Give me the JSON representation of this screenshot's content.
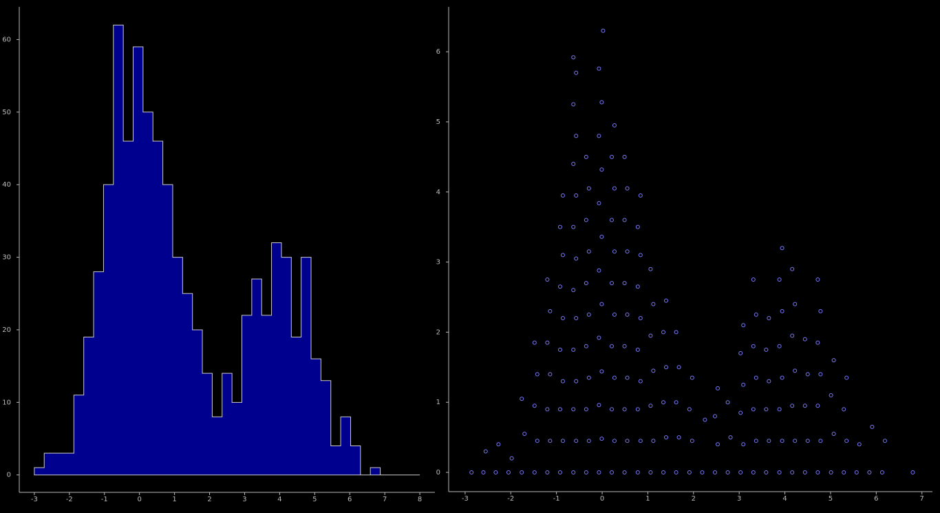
{
  "chart_data": [
    {
      "type": "histogram",
      "bins": [
        -3,
        -2.718,
        -2.436,
        -2.154,
        -1.872,
        -1.59,
        -1.308,
        -1.026,
        -0.744,
        -0.462,
        -0.18,
        0.102,
        0.384,
        0.666,
        0.948,
        1.23,
        1.512,
        1.794,
        2.076,
        2.358,
        2.64,
        2.922,
        3.204,
        3.486,
        3.768,
        4.05,
        4.332,
        4.614,
        4.896,
        5.178,
        5.46,
        5.742,
        6.024,
        6.306,
        6.588,
        6.87,
        7.152,
        7.434,
        7.716,
        7.998
      ],
      "values": [
        1,
        3,
        3,
        3,
        11,
        19,
        28,
        40,
        62,
        46,
        59,
        50,
        46,
        40,
        30,
        25,
        20,
        14,
        8,
        14,
        10,
        22,
        27,
        22,
        32,
        30,
        19,
        30,
        16,
        13,
        4,
        8,
        4,
        0,
        1,
        0,
        0,
        0,
        0
      ],
      "color": "#00008f",
      "edgecolor": "#cccccc",
      "xlim": [
        -3.43,
        8.43
      ],
      "xticks": [
        -3,
        -2,
        -1,
        0,
        1,
        2,
        3,
        4,
        5,
        6,
        7,
        8
      ],
      "ylim": [
        -2.4,
        64.5
      ],
      "yticks": [
        0,
        10,
        20,
        30,
        40,
        50,
        60
      ]
    },
    {
      "type": "scatter",
      "x": [
        -2.86,
        -2.6,
        -2.55,
        -2.33,
        -2.27,
        -2.05,
        -1.98,
        -1.76,
        -1.7,
        -1.76,
        -1.48,
        -1.42,
        -1.48,
        -1.42,
        -1.48,
        -1.2,
        -1.14,
        -1.2,
        -1.14,
        -1.2,
        -1.14,
        -1.2,
        -0.92,
        -0.86,
        -0.92,
        -0.86,
        -0.92,
        -0.86,
        -0.92,
        -0.86,
        -0.92,
        -0.86,
        -0.63,
        -0.57,
        -0.63,
        -0.57,
        -0.63,
        -0.57,
        -0.63,
        -0.57,
        -0.63,
        -0.57,
        -0.63,
        -0.57,
        -0.63,
        -0.57,
        -0.63,
        -0.35,
        -0.29,
        -0.35,
        -0.29,
        -0.35,
        -0.29,
        -0.35,
        -0.29,
        -0.35,
        -0.29,
        -0.35,
        -0.07,
        -0.01,
        -0.07,
        -0.01,
        -0.07,
        -0.01,
        -0.07,
        -0.01,
        -0.07,
        -0.01,
        -0.07,
        -0.01,
        -0.07,
        0.02,
        0.21,
        0.27,
        0.21,
        0.27,
        0.21,
        0.27,
        0.21,
        0.27,
        0.21,
        0.27,
        0.21,
        0.27,
        0.49,
        0.55,
        0.49,
        0.55,
        0.49,
        0.55,
        0.49,
        0.55,
        0.49,
        0.55,
        0.49,
        0.78,
        0.84,
        0.78,
        0.84,
        0.78,
        0.84,
        0.78,
        0.84,
        0.78,
        0.84,
        1.06,
        1.12,
        1.06,
        1.12,
        1.06,
        1.12,
        1.06,
        1.34,
        1.4,
        1.34,
        1.4,
        1.34,
        1.4,
        1.62,
        1.68,
        1.62,
        1.68,
        1.62,
        1.91,
        1.97,
        1.91,
        1.97,
        2.19,
        2.25,
        2.47,
        2.53,
        2.47,
        2.53,
        2.75,
        2.81,
        2.75,
        3.03,
        3.09,
        3.03,
        3.09,
        3.03,
        3.09,
        3.31,
        3.37,
        3.31,
        3.37,
        3.31,
        3.37,
        3.31,
        3.59,
        3.65,
        3.59,
        3.65,
        3.59,
        3.65,
        3.88,
        3.94,
        3.88,
        3.94,
        3.88,
        3.94,
        3.88,
        3.94,
        4.16,
        4.22,
        4.16,
        4.22,
        4.16,
        4.22,
        4.16,
        4.44,
        4.5,
        4.44,
        4.5,
        4.44,
        4.72,
        4.78,
        4.72,
        4.78,
        4.72,
        4.78,
        4.72,
        5.01,
        5.07,
        5.01,
        5.07,
        5.29,
        5.35,
        5.29,
        5.35,
        5.57,
        5.63,
        5.85,
        5.91,
        6.13,
        6.19,
        6.8
      ],
      "values": [
        0,
        0,
        0.3,
        0,
        0.4,
        0,
        0.2,
        0,
        0.55,
        1.05,
        0,
        0.45,
        0.95,
        1.4,
        1.85,
        0,
        0.45,
        0.9,
        1.4,
        1.85,
        2.3,
        2.75,
        0,
        0.45,
        0.9,
        1.3,
        1.75,
        2.2,
        2.65,
        3.1,
        3.5,
        3.95,
        0,
        0.45,
        0.9,
        1.3,
        1.75,
        2.2,
        2.6,
        3.05,
        3.5,
        3.95,
        4.4,
        4.8,
        5.25,
        5.7,
        5.92,
        0,
        0.45,
        0.9,
        1.35,
        1.8,
        2.25,
        2.7,
        3.15,
        3.6,
        4.05,
        4.5,
        0,
        0.48,
        0.96,
        1.44,
        1.92,
        2.4,
        2.88,
        3.36,
        3.84,
        4.32,
        4.8,
        5.28,
        5.76,
        6.3,
        0,
        0.45,
        0.9,
        1.35,
        1.8,
        2.25,
        2.7,
        3.15,
        3.6,
        4.05,
        4.5,
        4.95,
        0,
        0.45,
        0.9,
        1.35,
        1.8,
        2.25,
        2.7,
        3.15,
        3.6,
        4.05,
        4.5,
        0,
        0.45,
        0.9,
        1.3,
        1.75,
        2.2,
        2.65,
        3.1,
        3.5,
        3.95,
        0,
        0.45,
        0.95,
        1.45,
        1.95,
        2.4,
        2.9,
        0,
        0.5,
        1.0,
        1.5,
        2.0,
        2.45,
        0,
        0.5,
        1.0,
        1.5,
        2.0,
        0,
        0.45,
        0.9,
        1.35,
        0,
        0.75,
        0,
        0.4,
        0.8,
        1.2,
        0,
        0.5,
        1.0,
        0,
        0.4,
        0.85,
        1.25,
        1.7,
        2.1,
        0,
        0.45,
        0.9,
        1.35,
        1.8,
        2.25,
        2.75,
        0,
        0.45,
        0.9,
        1.3,
        1.75,
        2.2,
        0,
        0.45,
        0.9,
        1.35,
        1.8,
        2.3,
        2.75,
        3.2,
        0,
        0.45,
        0.95,
        1.45,
        1.95,
        2.4,
        2.9,
        0,
        0.45,
        0.95,
        1.4,
        1.9,
        0,
        0.45,
        0.95,
        1.4,
        1.85,
        2.3,
        2.75,
        0,
        0.55,
        1.1,
        1.6,
        0,
        0.45,
        0.9,
        1.35,
        0,
        0.4,
        0,
        0.65,
        0,
        0.45,
        0
      ],
      "color": "#7b7bff",
      "xlim": [
        -3.36,
        7.23
      ],
      "xticks": [
        -3,
        -2,
        -1,
        0,
        1,
        2,
        3,
        4,
        5,
        6,
        7
      ],
      "ylim": [
        -0.275,
        6.64
      ],
      "yticks": [
        0,
        1,
        2,
        3,
        4,
        5,
        6
      ]
    }
  ]
}
